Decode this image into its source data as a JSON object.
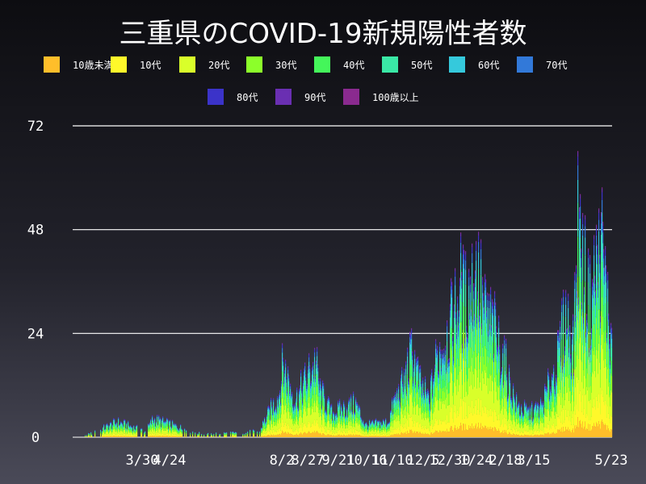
{
  "chart_data": {
    "type": "bar",
    "stacked": true,
    "title": "三重県のCOVID-19新規陽性者数",
    "xlabel": "",
    "ylabel": "",
    "ylim": [
      0,
      72
    ],
    "yticks": [
      0,
      24,
      48,
      72
    ],
    "grid": true,
    "legend_position": "top",
    "x_tick_labels": [
      "3/30",
      "4/24",
      "8/2",
      "8/27",
      "9/21",
      "10/16",
      "11/10",
      "12/5",
      "12/30",
      "1/24",
      "2/18",
      "3/15",
      "5/23"
    ],
    "series": [
      {
        "name": "10歳未満",
        "color": "#ffbe2a"
      },
      {
        "name": "10代",
        "color": "#fff82a"
      },
      {
        "name": "20代",
        "color": "#d9ff2a"
      },
      {
        "name": "30代",
        "color": "#8cff2a"
      },
      {
        "name": "40代",
        "color": "#44f65a"
      },
      {
        "name": "50代",
        "color": "#3ae8a6"
      },
      {
        "name": "60代",
        "color": "#35c9dc"
      },
      {
        "name": "70代",
        "color": "#3279d9"
      },
      {
        "name": "80代",
        "color": "#3b33c9"
      },
      {
        "name": "90代",
        "color": "#6a2fb2"
      },
      {
        "name": "100歳以上",
        "color": "#8a2a8f"
      }
    ],
    "daily_totals": [
      [
        76,
        1
      ],
      [
        92,
        0
      ],
      [
        100,
        0
      ],
      [
        145,
        5
      ],
      [
        180,
        2
      ],
      [
        189,
        6
      ],
      [
        250,
        1
      ],
      [
        320,
        2
      ],
      [
        345,
        14
      ],
      [
        350,
        24
      ],
      [
        365,
        12
      ],
      [
        390,
        25
      ],
      [
        396,
        15
      ],
      [
        410,
        8
      ],
      [
        440,
        11
      ],
      [
        452,
        4
      ],
      [
        480,
        5
      ],
      [
        488,
        12
      ],
      [
        500,
        18
      ],
      [
        504,
        22
      ],
      [
        510,
        28
      ],
      [
        520,
        17
      ],
      [
        531,
        12
      ],
      [
        540,
        26
      ],
      [
        560,
        38
      ],
      [
        570,
        49
      ],
      [
        575,
        44
      ],
      [
        590,
        55
      ],
      [
        600,
        40
      ],
      [
        610,
        36
      ],
      [
        625,
        24
      ],
      [
        630,
        18
      ],
      [
        640,
        10
      ],
      [
        655,
        8
      ],
      [
        670,
        10
      ],
      [
        690,
        25
      ],
      [
        700,
        40
      ],
      [
        710,
        30
      ],
      [
        715,
        71
      ],
      [
        720,
        58
      ],
      [
        730,
        43
      ],
      [
        737,
        55
      ],
      [
        745,
        62
      ],
      [
        750,
        48
      ],
      [
        757,
        28
      ]
    ]
  }
}
